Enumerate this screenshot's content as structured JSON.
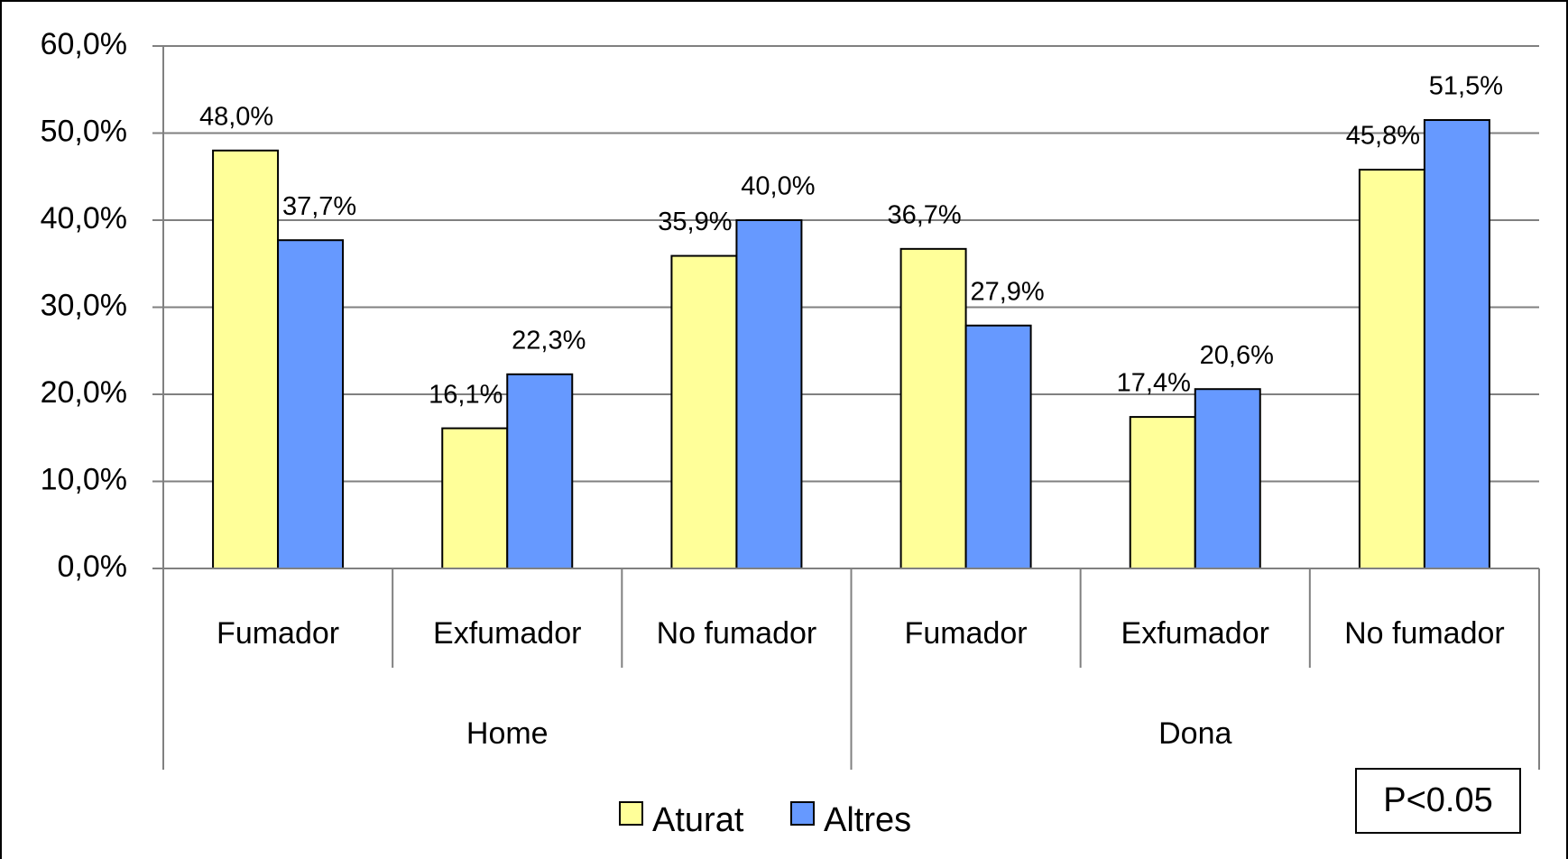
{
  "chart_data": {
    "type": "bar",
    "categories": [
      "Fumador",
      "Exfumador",
      "No fumador",
      "Fumador",
      "Exfumador",
      "No fumador"
    ],
    "groups": [
      "Home",
      "Dona"
    ],
    "series": [
      {
        "name": "Aturat",
        "color": "#ffff99",
        "values": [
          48.0,
          16.1,
          35.9,
          36.7,
          17.4,
          45.8
        ],
        "value_labels": [
          "48,0%",
          "16,1%",
          "35,9%",
          "36,7%",
          "17,4%",
          "45,8%"
        ]
      },
      {
        "name": "Altres",
        "color": "#6699ff",
        "values": [
          37.7,
          22.3,
          40.0,
          27.9,
          20.6,
          51.5
        ],
        "value_labels": [
          "37,7%",
          "22,3%",
          "40,0%",
          "27,9%",
          "20,6%",
          "51,5%"
        ]
      }
    ],
    "ylim": [
      0,
      60
    ],
    "yticks": [
      {
        "value": 0,
        "label": "0,0%"
      },
      {
        "value": 10,
        "label": "10,0%"
      },
      {
        "value": 20,
        "label": "20,0%"
      },
      {
        "value": 30,
        "label": "30,0%"
      },
      {
        "value": 40,
        "label": "40,0%"
      },
      {
        "value": 50,
        "label": "50,0%"
      },
      {
        "value": 60,
        "label": "60,0%"
      }
    ],
    "grid": true,
    "annotation": "P<0.05"
  }
}
